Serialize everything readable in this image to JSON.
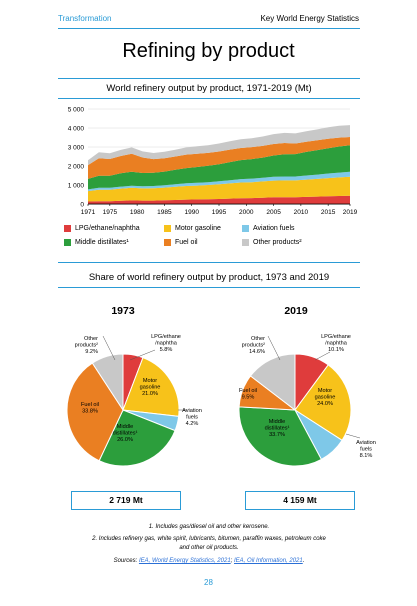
{
  "header": {
    "section": "Transformation",
    "publication": "Key World Energy Statistics"
  },
  "page_title": "Refining by product",
  "colors": {
    "lpg": "#df3c3c",
    "motor_gasoline": "#f7c21a",
    "aviation_fuels": "#7ec8e8",
    "middle_distillates": "#2c9e3c",
    "fuel_oil": "#ea7f22",
    "other_products": "#c8c8c8",
    "accent": "#2a9bd6"
  },
  "chart_data": [
    {
      "type": "area",
      "title": "World refinery output by product, 1971-2019 (Mt)",
      "x_tick_labels": [
        "1971",
        "1975",
        "1980",
        "1985",
        "1990",
        "1995",
        "2000",
        "2005",
        "2010",
        "2015",
        "2019"
      ],
      "y_tick_labels": [
        "0",
        "1 000",
        "2 000",
        "3 000",
        "4 000",
        "5 000"
      ],
      "xlim": [
        1971,
        2019
      ],
      "ylim": [
        0,
        5000
      ],
      "grid": "horizontal",
      "legend_position": "bottom",
      "legend": [
        {
          "key": "lpg",
          "label": "LPG/ethane/naphtha"
        },
        {
          "key": "motor_gasoline",
          "label": "Motor gasoline"
        },
        {
          "key": "aviation_fuels",
          "label": "Aviation fuels"
        },
        {
          "key": "middle_distillates",
          "label": "Middle distillates¹"
        },
        {
          "key": "fuel_oil",
          "label": "Fuel oil"
        },
        {
          "key": "other_products",
          "label": "Other products²"
        }
      ],
      "x": [
        1971,
        1973,
        1975,
        1977,
        1979,
        1981,
        1983,
        1985,
        1987,
        1989,
        1991,
        1993,
        1995,
        1997,
        1999,
        2001,
        2003,
        2005,
        2007,
        2009,
        2011,
        2013,
        2015,
        2017,
        2019
      ],
      "series": [
        {
          "key": "lpg",
          "name": "LPG/ethane/naphtha",
          "values": [
            130,
            150,
            150,
            170,
            190,
            180,
            180,
            195,
            210,
            230,
            240,
            250,
            265,
            285,
            300,
            310,
            330,
            350,
            360,
            360,
            375,
            390,
            405,
            420,
            430
          ]
        },
        {
          "key": "motor_gasoline",
          "name": "Motor gasoline",
          "values": [
            550,
            600,
            600,
            640,
            660,
            640,
            650,
            670,
            700,
            720,
            730,
            750,
            770,
            800,
            830,
            840,
            860,
            880,
            880,
            880,
            910,
            930,
            960,
            980,
            1000
          ]
        },
        {
          "key": "aviation_fuels",
          "name": "Aviation fuels",
          "values": [
            90,
            100,
            100,
            105,
            110,
            110,
            115,
            120,
            130,
            140,
            145,
            150,
            160,
            170,
            180,
            185,
            190,
            200,
            210,
            205,
            215,
            225,
            240,
            255,
            265
          ]
        },
        {
          "key": "middle_distillates",
          "name": "Middle distillates",
          "values": [
            550,
            640,
            640,
            700,
            740,
            700,
            700,
            720,
            760,
            800,
            830,
            860,
            900,
            950,
            1000,
            1030,
            1060,
            1120,
            1170,
            1180,
            1240,
            1290,
            1330,
            1370,
            1400
          ]
        },
        {
          "key": "fuel_oil",
          "name": "Fuel oil",
          "values": [
            730,
            920,
            880,
            910,
            940,
            820,
            720,
            700,
            700,
            710,
            700,
            680,
            670,
            660,
            640,
            630,
            620,
            610,
            590,
            560,
            540,
            520,
            500,
            470,
            430
          ]
        },
        {
          "key": "other_products",
          "name": "Other products",
          "values": [
            250,
            310,
            300,
            320,
            340,
            320,
            320,
            340,
            360,
            380,
            390,
            400,
            420,
            440,
            460,
            470,
            490,
            520,
            530,
            530,
            550,
            570,
            600,
            620,
            630
          ]
        }
      ]
    },
    {
      "type": "pie",
      "title": "1973",
      "slices": [
        {
          "key": "lpg",
          "label": "LPG/ethane\n/naphtha",
          "value": 5.8,
          "pct": "5.8%"
        },
        {
          "key": "motor_gasoline",
          "label": "Motor\ngasoline",
          "value": 21.0,
          "pct": "21.0%"
        },
        {
          "key": "aviation_fuels",
          "label": "Aviation\nfuels",
          "value": 4.2,
          "pct": "4.2%"
        },
        {
          "key": "middle_distillates",
          "label": "Middle\ndistillates¹",
          "value": 26.0,
          "pct": "26.0%"
        },
        {
          "key": "fuel_oil",
          "label": "Fuel oil",
          "value": 33.8,
          "pct": "33.8%"
        },
        {
          "key": "other_products",
          "label": "Other\nproducts²",
          "value": 9.2,
          "pct": "9.2%"
        }
      ],
      "total": "2 719 Mt"
    },
    {
      "type": "pie",
      "title": "2019",
      "slices": [
        {
          "key": "lpg",
          "label": "LPG/ethane\n/naphtha",
          "value": 10.1,
          "pct": "10.1%"
        },
        {
          "key": "motor_gasoline",
          "label": "Motor\ngasoline",
          "value": 24.0,
          "pct": "24.0%"
        },
        {
          "key": "aviation_fuels",
          "label": "Aviation\nfuels",
          "value": 8.1,
          "pct": "8.1%"
        },
        {
          "key": "middle_distillates",
          "label": "Middle\ndistillates¹",
          "value": 33.7,
          "pct": "33.7%"
        },
        {
          "key": "fuel_oil",
          "label": "Fuel oil",
          "value": 9.5,
          "pct": "9.5%"
        },
        {
          "key": "other_products",
          "label": "Other\nproducts²",
          "value": 14.6,
          "pct": "14.6%"
        }
      ],
      "total": "4 159 Mt"
    }
  ],
  "share_section_title": "Share of world refinery output by product, 1973 and 2019",
  "notes": {
    "note1": "1. Includes gas/diesel oil and other kerosene.",
    "note2a": "2. Includes refinery gas, white spirit, lubricants, bitumen, paraffin waxes, petroleum coke",
    "note2b": "and other oil products.",
    "sources_label": "Sources:",
    "source1": "IEA, World Energy Statistics, 2021",
    "sep": ";",
    "source2": "IEA, Oil Information, 2021",
    "end": "."
  },
  "page_number": "28"
}
